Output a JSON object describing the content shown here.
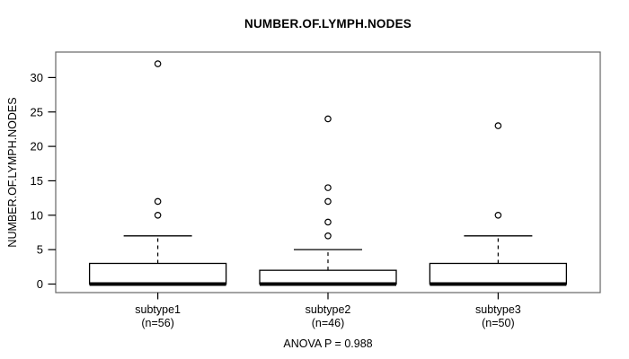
{
  "chart_data": {
    "type": "boxplot",
    "title": "NUMBER.OF.LYMPH.NODES",
    "ylabel": "NUMBER.OF.LYMPH.NODES",
    "xlabel": "",
    "annotation": "ANOVA P = 0.988",
    "ylim": [
      0,
      33
    ],
    "yticks": [
      0,
      5,
      10,
      15,
      20,
      25,
      30
    ],
    "grid": false,
    "legend": null,
    "groups": [
      {
        "label": "subtype1",
        "n_label": "(n=56)",
        "n": 56,
        "stats": {
          "lower_whisker": 0,
          "q1": 0,
          "median": 0,
          "q3": 3,
          "upper_whisker": 7
        },
        "outliers": [
          10,
          12,
          32
        ]
      },
      {
        "label": "subtype2",
        "n_label": "(n=46)",
        "n": 46,
        "stats": {
          "lower_whisker": 0,
          "q1": 0,
          "median": 0,
          "q3": 2,
          "upper_whisker": 5
        },
        "outliers": [
          7,
          9,
          12,
          14,
          24
        ]
      },
      {
        "label": "subtype3",
        "n_label": "(n=50)",
        "n": 50,
        "stats": {
          "lower_whisker": 0,
          "q1": 0,
          "median": 0,
          "q3": 3,
          "upper_whisker": 7
        },
        "outliers": [
          10,
          23
        ]
      }
    ],
    "colors": {
      "line": "#000000",
      "frame": "#666666",
      "background": "#ffffff",
      "text": "#000000",
      "box_fill": "#ffffff"
    }
  }
}
